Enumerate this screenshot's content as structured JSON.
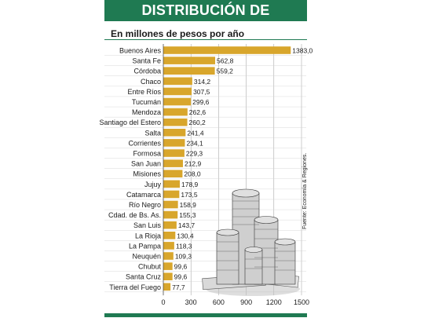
{
  "header": {
    "title": "DISTRIBUCIÓN DE RETENCIONES",
    "subtitle": "En millones de pesos por año"
  },
  "source": "Fuente: Economía & Regiones.",
  "colors": {
    "bar": "#d8a62c",
    "accent": "#1f7a52",
    "grid": "#9a9a9a"
  },
  "chart_data": {
    "type": "bar",
    "orientation": "horizontal",
    "title": "DISTRIBUCIÓN DE RETENCIONES",
    "subtitle": "En millones de pesos por año",
    "xlim": [
      0,
      1500
    ],
    "xticks": [
      "0",
      "300",
      "600",
      "900",
      "1200",
      "1500"
    ],
    "grid": true,
    "categories": [
      "Buenos Aires",
      "Santa Fe",
      "Córdoba",
      "Chaco",
      "Entre Ríos",
      "Tucumán",
      "Mendoza",
      "Santiago del Estero",
      "Salta",
      "Corrientes",
      "Formosa",
      "San Juan",
      "Misiones",
      "Jujuy",
      "Catamarca",
      "Río Negro",
      "Cdad. de Bs. As.",
      "San Luis",
      "La Rioja",
      "La Pampa",
      "Neuquén",
      "Chubut",
      "Santa Cruz",
      "Tierra del Fuego"
    ],
    "values": [
      1383.0,
      562.8,
      559.2,
      314.2,
      307.5,
      299.6,
      262.6,
      260.2,
      241.4,
      234.1,
      229.3,
      212.9,
      208.0,
      178.9,
      173.5,
      158.9,
      155.3,
      143.7,
      130.4,
      118.3,
      109.3,
      99.6,
      99.6,
      77.7
    ],
    "value_labels": [
      "1383,0",
      "562,8",
      "559,2",
      "314,2",
      "307,5",
      "299,6",
      "262,6",
      "260,2",
      "241,4",
      "234,1",
      "229,3",
      "212,9",
      "208,0",
      "178,9",
      "173,5",
      "158,9",
      "155,3",
      "143,7",
      "130,4",
      "118,3",
      "109,3",
      "99,6",
      "99,6",
      "77,7"
    ]
  }
}
